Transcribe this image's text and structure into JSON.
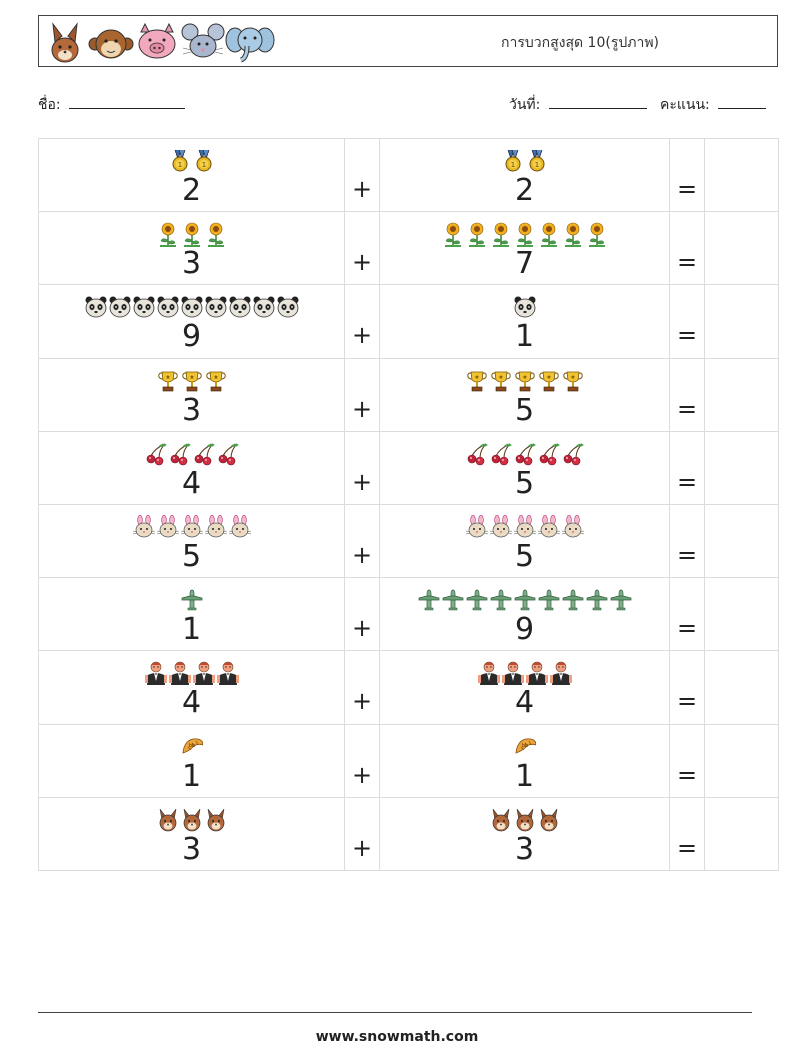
{
  "header": {
    "title": "การบวกสูงสุด 10(รูปภาพ)",
    "animals": [
      "rabbit-icon",
      "monkey-icon",
      "pig-icon",
      "mouse-icon",
      "elephant-icon"
    ]
  },
  "labels": {
    "name": "ชื่อ:",
    "date": "วันที่:",
    "score": "คะแนน:"
  },
  "operators": {
    "plus": "+",
    "equals": "="
  },
  "problems": [
    {
      "a": 2,
      "b": 2,
      "icon": "medal-icon"
    },
    {
      "a": 3,
      "b": 7,
      "icon": "sunflower-icon"
    },
    {
      "a": 9,
      "b": 1,
      "icon": "panda-icon"
    },
    {
      "a": 3,
      "b": 5,
      "icon": "trophy-icon"
    },
    {
      "a": 4,
      "b": 5,
      "icon": "cherry-icon"
    },
    {
      "a": 5,
      "b": 5,
      "icon": "bunny-icon"
    },
    {
      "a": 1,
      "b": 9,
      "icon": "airplane-icon"
    },
    {
      "a": 4,
      "b": 4,
      "icon": "waiter-icon"
    },
    {
      "a": 1,
      "b": 1,
      "icon": "croissant-icon"
    },
    {
      "a": 3,
      "b": 3,
      "icon": "rabbit-icon"
    }
  ],
  "footer": "www.snowmath.com"
}
